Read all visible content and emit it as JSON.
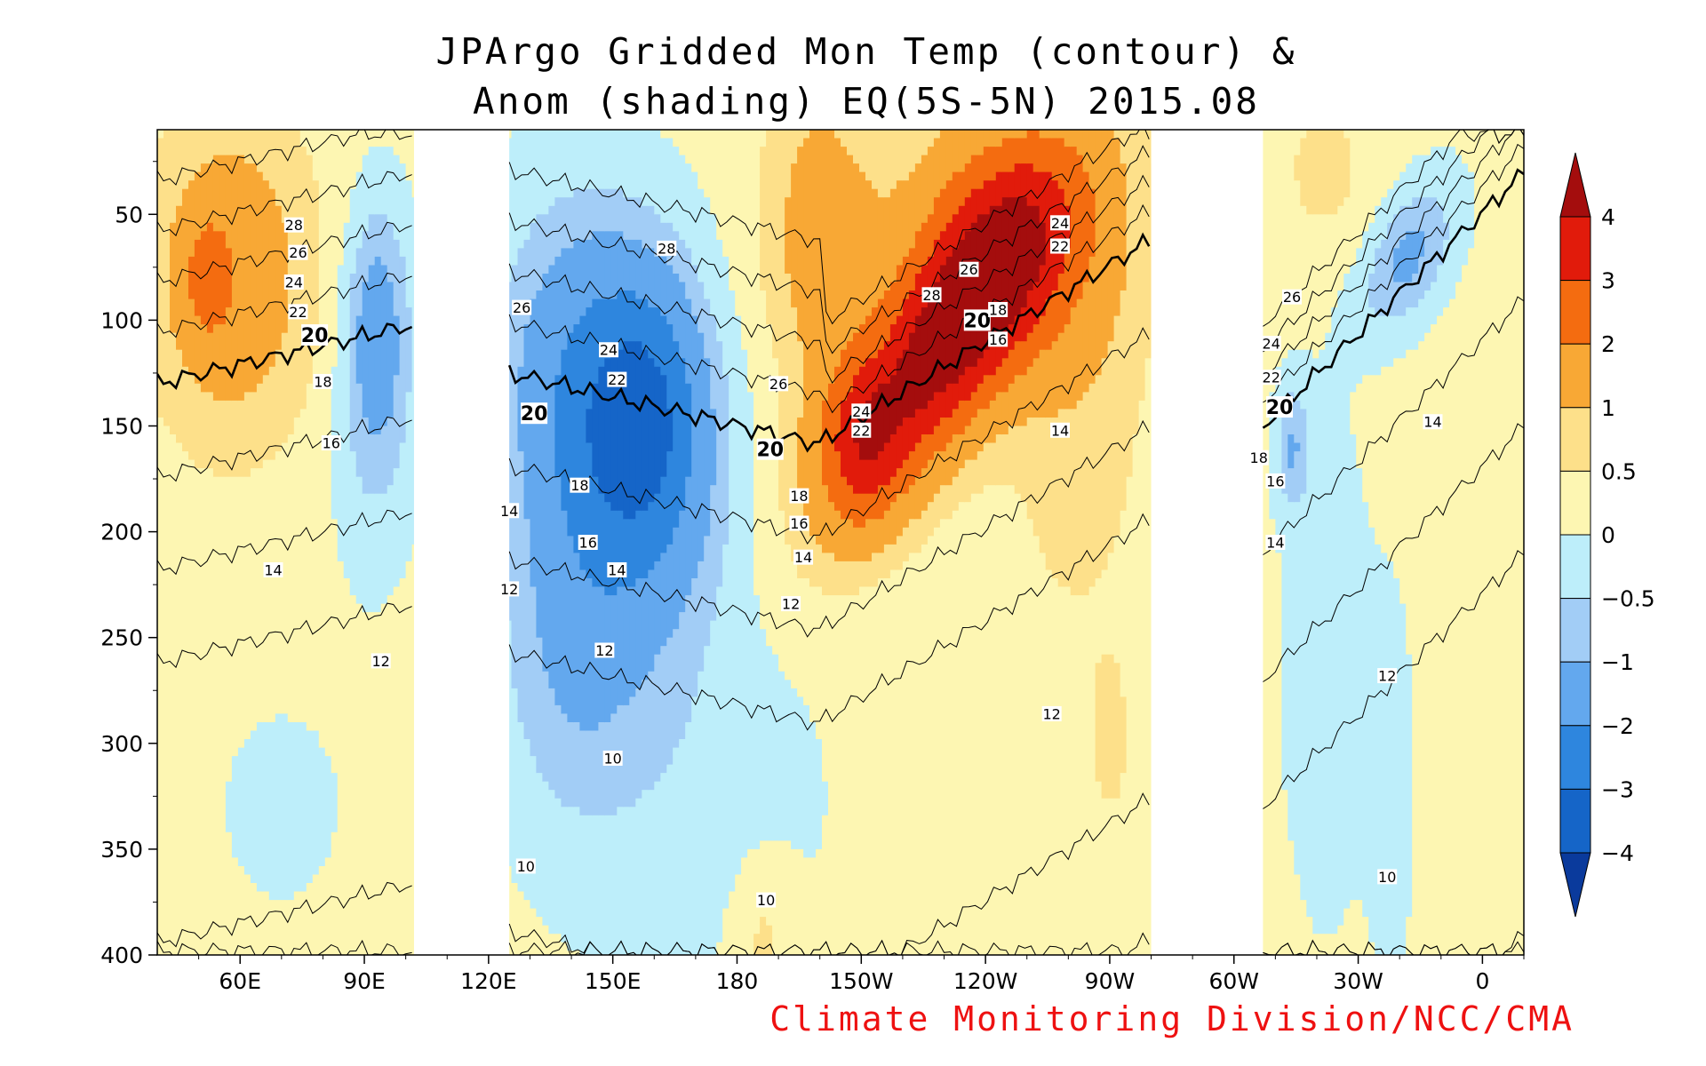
{
  "chart_data": {
    "type": "heatmap",
    "title_lines": [
      "JPArgo Gridded Mon Temp (contour) &",
      "Anom (shading) EQ(5S-5N) 2015.08"
    ],
    "credit": "Climate Monitoring Division/NCC/CMA",
    "x_axis": {
      "range_lon_east": [
        40,
        370
      ],
      "ticks": [
        {
          "lon": 60,
          "label": "60E"
        },
        {
          "lon": 90,
          "label": "90E"
        },
        {
          "lon": 120,
          "label": "120E"
        },
        {
          "lon": 150,
          "label": "150E"
        },
        {
          "lon": 180,
          "label": "180"
        },
        {
          "lon": 210,
          "label": "150W"
        },
        {
          "lon": 240,
          "label": "120W"
        },
        {
          "lon": 270,
          "label": "90W"
        },
        {
          "lon": 300,
          "label": "60W"
        },
        {
          "lon": 330,
          "label": "30W"
        },
        {
          "lon": 360,
          "label": "0"
        }
      ]
    },
    "y_axis": {
      "range_depth": [
        10,
        400
      ],
      "reversed": true,
      "ticks": [
        50,
        100,
        150,
        200,
        250,
        300,
        350,
        400
      ]
    },
    "land_gaps_lon": [
      [
        102,
        125
      ],
      [
        280,
        307
      ]
    ],
    "colorbar": {
      "levels": [
        "-4",
        "-3",
        "-2",
        "-1",
        "-0.5",
        "0",
        "0.5",
        "1",
        "2",
        "3",
        "4"
      ],
      "colors": [
        "#0a3a9c",
        "#1565c8",
        "#2e86de",
        "#63a8ee",
        "#a2cdf6",
        "#bdeefa",
        "#fdf6b2",
        "#fde08a",
        "#f8a835",
        "#f46c10",
        "#e11b0b",
        "#a40d0d"
      ],
      "extend": "both"
    },
    "anomaly_values": [
      -4,
      -3,
      -2,
      -1,
      -0.5,
      0,
      0.5,
      1,
      2,
      3,
      4
    ],
    "contour_levels": [
      10,
      12,
      14,
      16,
      18,
      20,
      22,
      24,
      26,
      28
    ],
    "contour_labels": [
      {
        "text": "28",
        "lon": 73,
        "depth": 55
      },
      {
        "text": "26",
        "lon": 74,
        "depth": 68
      },
      {
        "text": "24",
        "lon": 73,
        "depth": 82
      },
      {
        "text": "22",
        "lon": 74,
        "depth": 96
      },
      {
        "text": "20",
        "lon": 78,
        "depth": 107
      },
      {
        "text": "18",
        "lon": 80,
        "depth": 129
      },
      {
        "text": "16",
        "lon": 82,
        "depth": 158
      },
      {
        "text": "14",
        "lon": 68,
        "depth": 218
      },
      {
        "text": "12",
        "lon": 94,
        "depth": 261
      },
      {
        "text": "28",
        "lon": 163,
        "depth": 66
      },
      {
        "text": "26",
        "lon": 128,
        "depth": 94
      },
      {
        "text": "24",
        "lon": 149,
        "depth": 114
      },
      {
        "text": "22",
        "lon": 151,
        "depth": 128
      },
      {
        "text": "20",
        "lon": 131,
        "depth": 144
      },
      {
        "text": "18",
        "lon": 142,
        "depth": 178
      },
      {
        "text": "16",
        "lon": 144,
        "depth": 205
      },
      {
        "text": "14",
        "lon": 125,
        "depth": 190
      },
      {
        "text": "14",
        "lon": 151,
        "depth": 218
      },
      {
        "text": "12",
        "lon": 125,
        "depth": 227
      },
      {
        "text": "12",
        "lon": 148,
        "depth": 256
      },
      {
        "text": "10",
        "lon": 150,
        "depth": 307
      },
      {
        "text": "10",
        "lon": 129,
        "depth": 358
      },
      {
        "text": "10",
        "lon": 187,
        "depth": 374
      },
      {
        "text": "26",
        "lon": 190,
        "depth": 130
      },
      {
        "text": "20",
        "lon": 188,
        "depth": 161
      },
      {
        "text": "18",
        "lon": 195,
        "depth": 183
      },
      {
        "text": "16",
        "lon": 195,
        "depth": 196
      },
      {
        "text": "14",
        "lon": 196,
        "depth": 212
      },
      {
        "text": "12",
        "lon": 193,
        "depth": 234
      },
      {
        "text": "24",
        "lon": 210,
        "depth": 143
      },
      {
        "text": "22",
        "lon": 210,
        "depth": 152
      },
      {
        "text": "28",
        "lon": 227,
        "depth": 88
      },
      {
        "text": "26",
        "lon": 236,
        "depth": 76
      },
      {
        "text": "20",
        "lon": 238,
        "depth": 100
      },
      {
        "text": "18",
        "lon": 243,
        "depth": 95
      },
      {
        "text": "16",
        "lon": 243,
        "depth": 109
      },
      {
        "text": "24",
        "lon": 258,
        "depth": 54
      },
      {
        "text": "22",
        "lon": 258,
        "depth": 65
      },
      {
        "text": "14",
        "lon": 258,
        "depth": 152
      },
      {
        "text": "12",
        "lon": 256,
        "depth": 286
      },
      {
        "text": "26",
        "lon": 314,
        "depth": 89
      },
      {
        "text": "24",
        "lon": 309,
        "depth": 111
      },
      {
        "text": "22",
        "lon": 309,
        "depth": 127
      },
      {
        "text": "20",
        "lon": 311,
        "depth": 141
      },
      {
        "text": "18",
        "lon": 306,
        "depth": 165
      },
      {
        "text": "16",
        "lon": 310,
        "depth": 176
      },
      {
        "text": "14",
        "lon": 310,
        "depth": 205
      },
      {
        "text": "14",
        "lon": 348,
        "depth": 148
      },
      {
        "text": "12",
        "lon": 337,
        "depth": 268
      },
      {
        "text": "10",
        "lon": 337,
        "depth": 363
      }
    ]
  }
}
